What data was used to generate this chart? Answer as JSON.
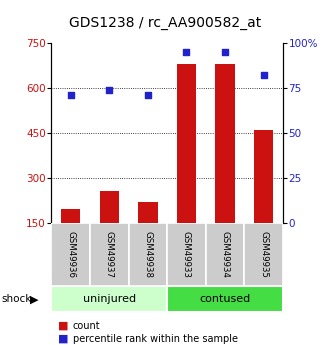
{
  "title": "GDS1238 / rc_AA900582_at",
  "samples": [
    "GSM49936",
    "GSM49937",
    "GSM49938",
    "GSM49933",
    "GSM49934",
    "GSM49935"
  ],
  "counts": [
    195,
    255,
    220,
    680,
    680,
    460
  ],
  "percentiles": [
    71,
    74,
    71,
    95,
    95,
    82
  ],
  "ylim_left": [
    150,
    750
  ],
  "ylim_right": [
    0,
    100
  ],
  "yticks_left": [
    150,
    300,
    450,
    600,
    750
  ],
  "yticks_right": [
    0,
    25,
    50,
    75,
    100
  ],
  "bar_color": "#cc1111",
  "dot_color": "#2222cc",
  "bg_color": "#ffffff",
  "sample_bg": "#cccccc",
  "uninjured_color": "#ccffcc",
  "contused_color": "#44dd44",
  "legend_count": "count",
  "legend_pct": "percentile rank within the sample",
  "title_fontsize": 10,
  "tick_fontsize": 7.5,
  "sample_fontsize": 6.2,
  "group_fontsize": 8,
  "legend_fontsize": 7,
  "grid_dotted_vals": [
    300,
    450,
    600
  ]
}
